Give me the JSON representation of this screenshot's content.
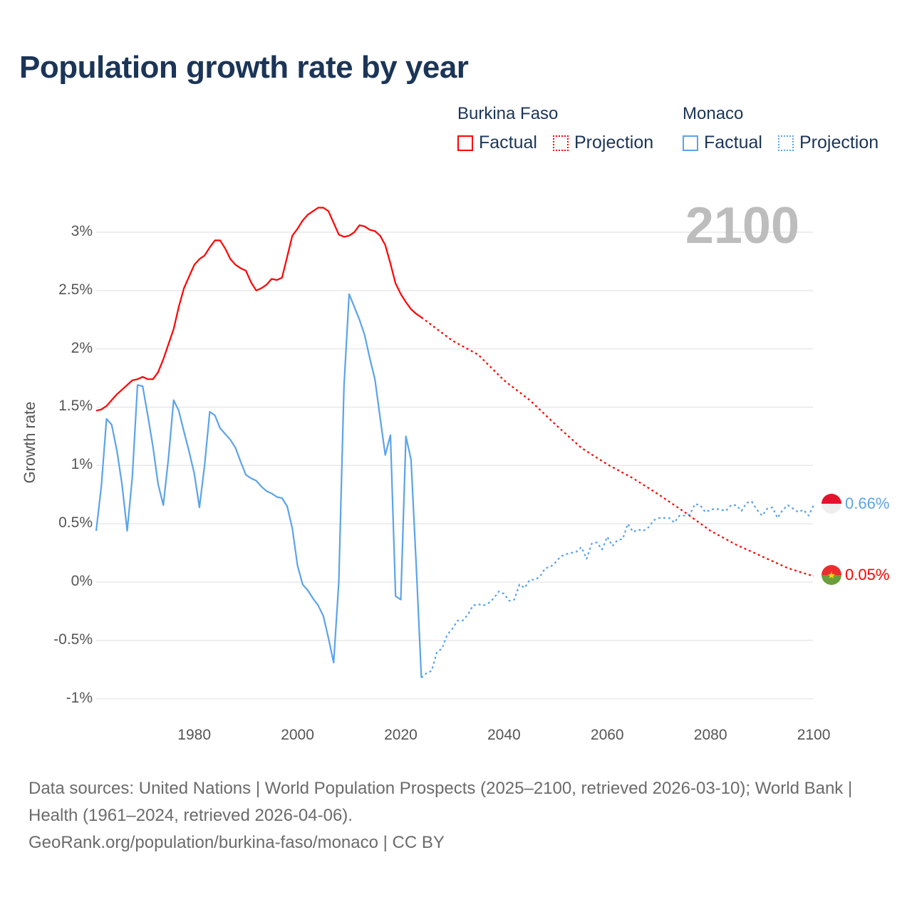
{
  "title": "Population growth rate by year",
  "legend": {
    "groups": [
      {
        "name": "Burkina Faso",
        "factual": "Factual",
        "projection": "Projection",
        "color": "#ff0000"
      },
      {
        "name": "Monaco",
        "factual": "Factual",
        "projection": "Projection",
        "color": "#5ba3ea"
      }
    ]
  },
  "current_year": "2100",
  "end_labels": {
    "monaco": "0.66%",
    "burkina": "0.05%"
  },
  "footer": {
    "sources": "Data sources: United Nations | World Population Prospects (2025–2100, retrieved 2026-03-10); World Bank | Health (1961–2024, retrieved 2026-04-06).",
    "credit": "GeoRank.org/population/burkina-faso/monaco | CC BY"
  },
  "chart_data": {
    "type": "line",
    "title": "Population growth rate by year",
    "xlabel": "",
    "ylabel": "Growth rate",
    "xlim": [
      1961,
      2100
    ],
    "ylim": [
      -1.2,
      3.4
    ],
    "x_ticks": [
      1980,
      2000,
      2020,
      2040,
      2060,
      2080,
      2100
    ],
    "y_ticks": [
      {
        "v": 3,
        "label": "3%"
      },
      {
        "v": 2.5,
        "label": "2.5%"
      },
      {
        "v": 2,
        "label": "2%"
      },
      {
        "v": 1.5,
        "label": "1.5%"
      },
      {
        "v": 1,
        "label": "1%"
      },
      {
        "v": 0.5,
        "label": "0.5%"
      },
      {
        "v": 0,
        "label": "0%"
      },
      {
        "v": -0.5,
        "label": "-0.5%"
      },
      {
        "v": -1,
        "label": "-1%"
      }
    ],
    "grid": true,
    "legend_position": "top-right",
    "series": [
      {
        "name": "Burkina Faso Factual",
        "color": "#ff0000",
        "dashed": false,
        "start": 1961,
        "values": [
          1.47,
          1.48,
          1.51,
          1.56,
          1.61,
          1.65,
          1.69,
          1.73,
          1.74,
          1.76,
          1.74,
          1.74,
          1.8,
          1.91,
          2.04,
          2.17,
          2.36,
          2.52,
          2.62,
          2.72,
          2.77,
          2.8,
          2.87,
          2.93,
          2.93,
          2.86,
          2.77,
          2.72,
          2.69,
          2.67,
          2.57,
          2.5,
          2.52,
          2.55,
          2.6,
          2.59,
          2.61,
          2.79,
          2.97,
          3.03,
          3.1,
          3.15,
          3.18,
          3.21,
          3.21,
          3.18,
          3.08,
          2.98,
          2.96,
          2.97,
          3.0,
          3.06,
          3.05,
          3.02,
          3.01,
          2.97,
          2.89,
          2.73,
          2.56,
          2.47,
          2.4,
          2.34,
          2.3,
          2.27
        ]
      },
      {
        "name": "Burkina Faso Projection",
        "color": "#ff0000",
        "dashed": true,
        "x": [
          2024,
          2030,
          2035,
          2040,
          2045,
          2050,
          2055,
          2060,
          2065,
          2070,
          2075,
          2080,
          2085,
          2090,
          2095,
          2100
        ],
        "values": [
          2.27,
          2.07,
          1.95,
          1.73,
          1.56,
          1.35,
          1.15,
          1.01,
          0.89,
          0.75,
          0.6,
          0.44,
          0.32,
          0.22,
          0.12,
          0.05
        ]
      },
      {
        "name": "Monaco Factual",
        "color": "#5ba3ea",
        "dashed": false,
        "start": 1961,
        "values": [
          0.44,
          0.82,
          1.4,
          1.35,
          1.13,
          0.84,
          0.44,
          0.9,
          1.69,
          1.68,
          1.43,
          1.16,
          0.84,
          0.66,
          1.06,
          1.56,
          1.47,
          1.29,
          1.12,
          0.93,
          0.64,
          1.0,
          1.46,
          1.43,
          1.32,
          1.27,
          1.22,
          1.15,
          1.03,
          0.92,
          0.89,
          0.87,
          0.82,
          0.78,
          0.76,
          0.73,
          0.72,
          0.65,
          0.46,
          0.14,
          -0.02,
          -0.07,
          -0.14,
          -0.2,
          -0.29,
          -0.48,
          -0.69,
          0.0,
          1.68,
          2.47,
          2.36,
          2.25,
          2.12,
          1.92,
          1.74,
          1.41,
          1.09,
          1.26,
          -0.12,
          -0.15,
          1.25,
          1.05,
          0.14,
          -0.82
        ]
      },
      {
        "name": "Monaco Projection",
        "color": "#5ba3ea",
        "dashed": true,
        "start": 2024,
        "values": [
          -0.82,
          -0.78,
          -0.76,
          -0.6,
          -0.57,
          -0.45,
          -0.4,
          -0.33,
          -0.33,
          -0.28,
          -0.2,
          -0.19,
          -0.2,
          -0.18,
          -0.14,
          -0.08,
          -0.1,
          -0.16,
          -0.15,
          -0.02,
          -0.05,
          0.02,
          0.02,
          0.05,
          0.12,
          0.13,
          0.17,
          0.22,
          0.24,
          0.25,
          0.26,
          0.3,
          0.2,
          0.33,
          0.34,
          0.28,
          0.39,
          0.31,
          0.36,
          0.37,
          0.5,
          0.43,
          0.45,
          0.44,
          0.47,
          0.53,
          0.55,
          0.55,
          0.55,
          0.51,
          0.57,
          0.57,
          0.58,
          0.67,
          0.66,
          0.6,
          0.62,
          0.63,
          0.62,
          0.61,
          0.66,
          0.66,
          0.61,
          0.68,
          0.69,
          0.62,
          0.57,
          0.63,
          0.64,
          0.55,
          0.62,
          0.66,
          0.63,
          0.6,
          0.62,
          0.57,
          0.66
        ]
      }
    ]
  }
}
